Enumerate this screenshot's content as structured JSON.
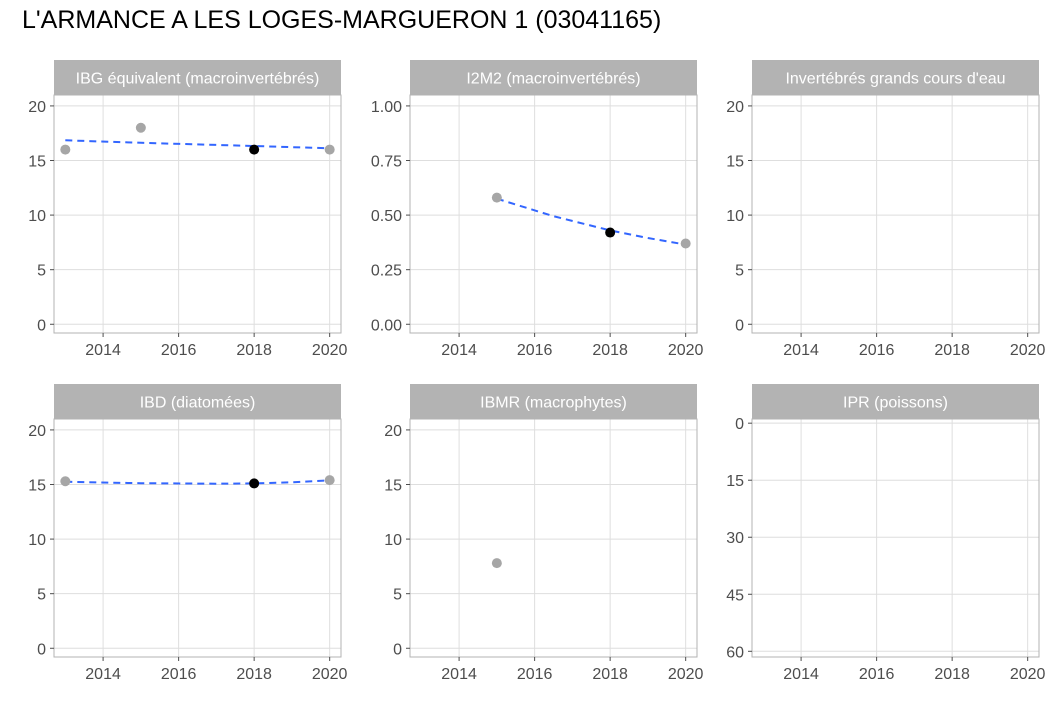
{
  "page": {
    "title": "L'ARMANCE A LES LOGES-MARGUERON 1 (03041165)"
  },
  "colors": {
    "strip": "#b3b3b3",
    "strip_text": "#ffffff",
    "panel_border": "#b3b3b3",
    "grid": "#dedede",
    "tick_text": "#4d4d4d",
    "point_gray": "#a6a6a6",
    "point_black": "#000000",
    "trend": "#3366ff"
  },
  "chart_data": [
    {
      "type": "scatter",
      "title": "IBG équivalent (macroinvertébrés)",
      "xlim": [
        2012.7,
        2020.3
      ],
      "xticks": [
        "2014",
        "2016",
        "2018",
        "2020"
      ],
      "ylim": [
        -0.8,
        21.0
      ],
      "yticks": [
        "0",
        "5",
        "10",
        "15",
        "20"
      ],
      "ytick_values": [
        0,
        5,
        10,
        15,
        20
      ],
      "y_reversed": false,
      "points": [
        {
          "x": 2013,
          "y": 16,
          "color": "gray"
        },
        {
          "x": 2015,
          "y": 18,
          "color": "gray"
        },
        {
          "x": 2018,
          "y": 16,
          "color": "black"
        },
        {
          "x": 2020,
          "y": 16,
          "color": "gray"
        }
      ],
      "trend": {
        "x": [
          2013,
          2015,
          2018,
          2020
        ],
        "y": [
          16.85,
          16.62,
          16.33,
          16.12
        ]
      }
    },
    {
      "type": "scatter",
      "title": "I2M2 (macroinvertébrés)",
      "xlim": [
        2012.7,
        2020.3
      ],
      "xticks": [
        "2014",
        "2016",
        "2018",
        "2020"
      ],
      "ylim": [
        -0.04,
        1.05
      ],
      "yticks": [
        "0.00",
        "0.25",
        "0.50",
        "0.75",
        "1.00"
      ],
      "ytick_values": [
        0,
        0.25,
        0.5,
        0.75,
        1.0
      ],
      "y_reversed": false,
      "points": [
        {
          "x": 2015,
          "y": 0.58,
          "color": "gray"
        },
        {
          "x": 2018,
          "y": 0.42,
          "color": "black"
        },
        {
          "x": 2020,
          "y": 0.37,
          "color": "gray"
        }
      ],
      "trend": {
        "x": [
          2015,
          2016.5,
          2018,
          2019,
          2020
        ],
        "y": [
          0.575,
          0.495,
          0.43,
          0.395,
          0.365
        ]
      }
    },
    {
      "type": "scatter",
      "title": "Invertébrés grands cours d'eau",
      "xlim": [
        2012.7,
        2020.3
      ],
      "xticks": [
        "2014",
        "2016",
        "2018",
        "2020"
      ],
      "ylim": [
        -0.8,
        21.0
      ],
      "yticks": [
        "0",
        "5",
        "10",
        "15",
        "20"
      ],
      "ytick_values": [
        0,
        5,
        10,
        15,
        20
      ],
      "y_reversed": false,
      "points": [],
      "trend": null
    },
    {
      "type": "scatter",
      "title": "IBD (diatomées)",
      "xlim": [
        2012.7,
        2020.3
      ],
      "xticks": [
        "2014",
        "2016",
        "2018",
        "2020"
      ],
      "ylim": [
        -0.8,
        21.0
      ],
      "yticks": [
        "0",
        "5",
        "10",
        "15",
        "20"
      ],
      "ytick_values": [
        0,
        5,
        10,
        15,
        20
      ],
      "y_reversed": false,
      "points": [
        {
          "x": 2013,
          "y": 15.3,
          "color": "gray"
        },
        {
          "x": 2018,
          "y": 15.1,
          "color": "black"
        },
        {
          "x": 2020,
          "y": 15.4,
          "color": "gray"
        }
      ],
      "trend": {
        "x": [
          2013,
          2015,
          2017,
          2018,
          2019,
          2020
        ],
        "y": [
          15.25,
          15.12,
          15.07,
          15.1,
          15.2,
          15.38
        ]
      }
    },
    {
      "type": "scatter",
      "title": "IBMR (macrophytes)",
      "xlim": [
        2012.7,
        2020.3
      ],
      "xticks": [
        "2014",
        "2016",
        "2018",
        "2020"
      ],
      "ylim": [
        -0.8,
        21.0
      ],
      "yticks": [
        "0",
        "5",
        "10",
        "15",
        "20"
      ],
      "ytick_values": [
        0,
        5,
        10,
        15,
        20
      ],
      "y_reversed": false,
      "points": [
        {
          "x": 2015,
          "y": 7.8,
          "color": "gray"
        }
      ],
      "trend": null
    },
    {
      "type": "scatter",
      "title": "IPR (poissons)",
      "xlim": [
        2012.7,
        2020.3
      ],
      "xticks": [
        "2014",
        "2016",
        "2018",
        "2020"
      ],
      "ylim": [
        -1.1,
        61.5
      ],
      "yticks": [
        "0",
        "15",
        "30",
        "45",
        "60"
      ],
      "ytick_values": [
        0,
        15,
        30,
        45,
        60
      ],
      "y_reversed": true,
      "points": [],
      "trend": null
    }
  ]
}
